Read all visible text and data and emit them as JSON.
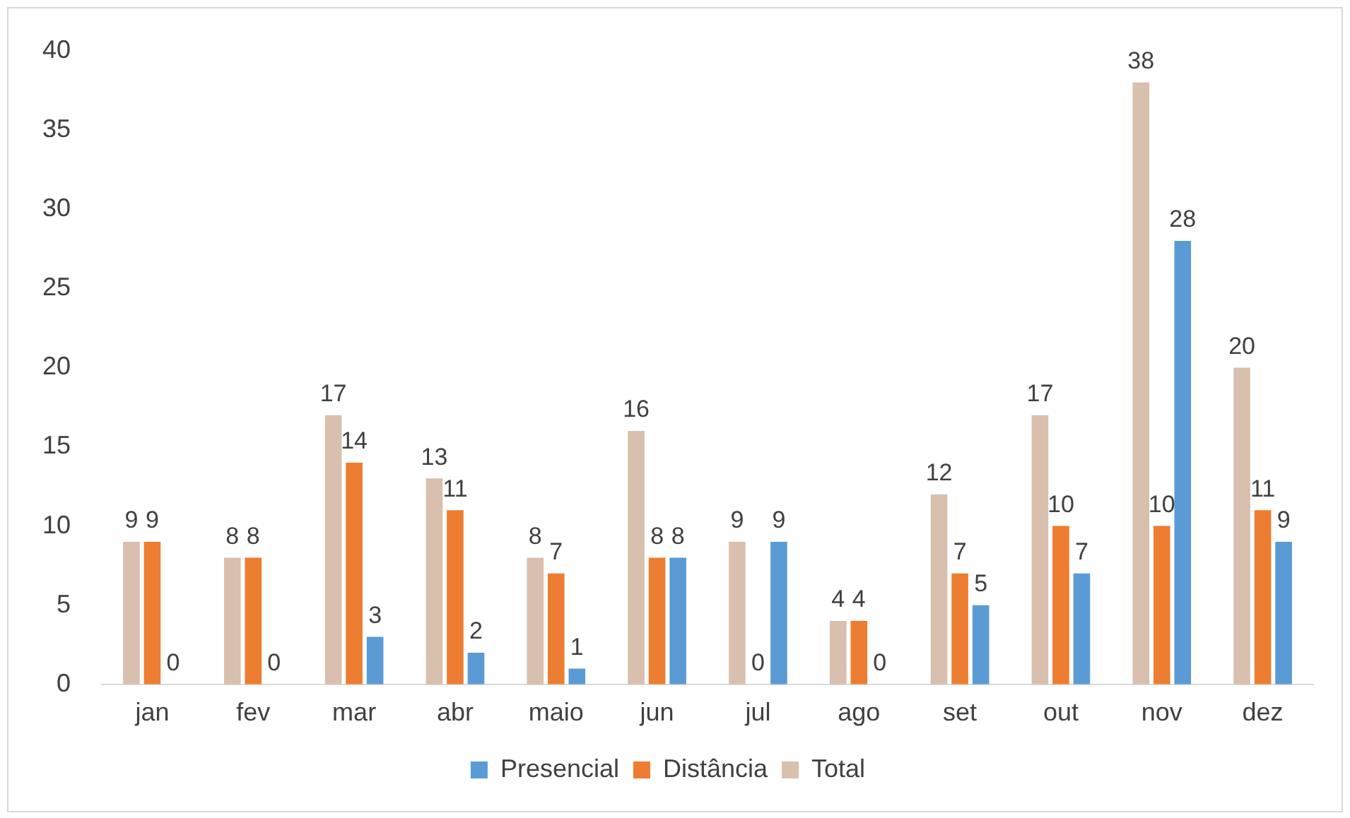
{
  "chart_data": {
    "type": "bar",
    "categories": [
      "jan",
      "fev",
      "mar",
      "abr",
      "maio",
      "jun",
      "jul",
      "ago",
      "set",
      "out",
      "nov",
      "dez"
    ],
    "series": [
      {
        "name": "Presencial",
        "color": "#5b9bd5",
        "values": [
          0,
          0,
          3,
          2,
          1,
          8,
          9,
          0,
          5,
          7,
          28,
          9
        ]
      },
      {
        "name": "Distância",
        "color": "#ed7d31",
        "values": [
          9,
          8,
          14,
          11,
          7,
          8,
          0,
          4,
          7,
          10,
          10,
          11
        ]
      },
      {
        "name": "Total",
        "color": "#d8bfae",
        "values": [
          9,
          8,
          17,
          13,
          8,
          16,
          9,
          4,
          12,
          17,
          38,
          20
        ]
      }
    ],
    "ylim": [
      0,
      40
    ],
    "yticks": [
      0,
      5,
      10,
      15,
      20,
      25,
      30,
      35,
      40
    ],
    "grid": false,
    "legend": "bottom",
    "data_labels": true
  }
}
